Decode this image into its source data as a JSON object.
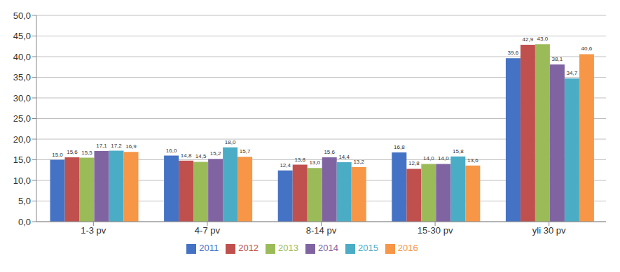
{
  "chart_data": {
    "type": "bar",
    "categories": [
      "1-3 pv",
      "4-7 pv",
      "8-14 pv",
      "15-30 pv",
      "yli 30 pv"
    ],
    "series": [
      {
        "name": "2011",
        "color": "#4472c4",
        "values": [
          15.0,
          16.0,
          12.4,
          16.8,
          39.6
        ],
        "value_labels": [
          "15,0",
          "16,0",
          "12,4",
          "16,8",
          "39,6"
        ]
      },
      {
        "name": "2012",
        "color": "#c0504d",
        "values": [
          15.6,
          14.8,
          13.8,
          12.8,
          42.9
        ],
        "value_labels": [
          "15,6",
          "14,8",
          "13,8",
          "12,8",
          "42,9"
        ]
      },
      {
        "name": "2013",
        "color": "#9bbb59",
        "values": [
          15.5,
          14.5,
          13.0,
          14.0,
          43.0
        ],
        "value_labels": [
          "15,5",
          "14,5",
          "13,0",
          "14,0",
          "43,0"
        ]
      },
      {
        "name": "2014",
        "color": "#8064a2",
        "values": [
          17.1,
          15.2,
          15.6,
          14.0,
          38.1
        ],
        "value_labels": [
          "17,1",
          "15,2",
          "15,6",
          "14,0",
          "38,1"
        ]
      },
      {
        "name": "2015",
        "color": "#4bacc6",
        "values": [
          17.2,
          18.0,
          14.4,
          15.8,
          34.7
        ],
        "value_labels": [
          "17,2",
          "18,0",
          "14,4",
          "15,8",
          "34,7"
        ]
      },
      {
        "name": "2016",
        "color": "#f79646",
        "values": [
          16.9,
          15.7,
          13.2,
          13.6,
          40.6
        ],
        "value_labels": [
          "16,9",
          "15,7",
          "13,2",
          "13,6",
          "40,6"
        ]
      }
    ],
    "ylim": [
      0,
      50
    ],
    "yticks": [
      {
        "value": 0,
        "label": "0,0"
      },
      {
        "value": 5,
        "label": "5,0"
      },
      {
        "value": 10,
        "label": "10,0"
      },
      {
        "value": 15,
        "label": "15,0"
      },
      {
        "value": 20,
        "label": "20,0"
      },
      {
        "value": 25,
        "label": "25,0"
      },
      {
        "value": 30,
        "label": "30,0"
      },
      {
        "value": 35,
        "label": "35,0"
      },
      {
        "value": 40,
        "label": "40,0"
      },
      {
        "value": 45,
        "label": "45,0"
      },
      {
        "value": 50,
        "label": "50,0"
      }
    ],
    "grid": true,
    "legend": "bottom",
    "data_labels": true
  }
}
